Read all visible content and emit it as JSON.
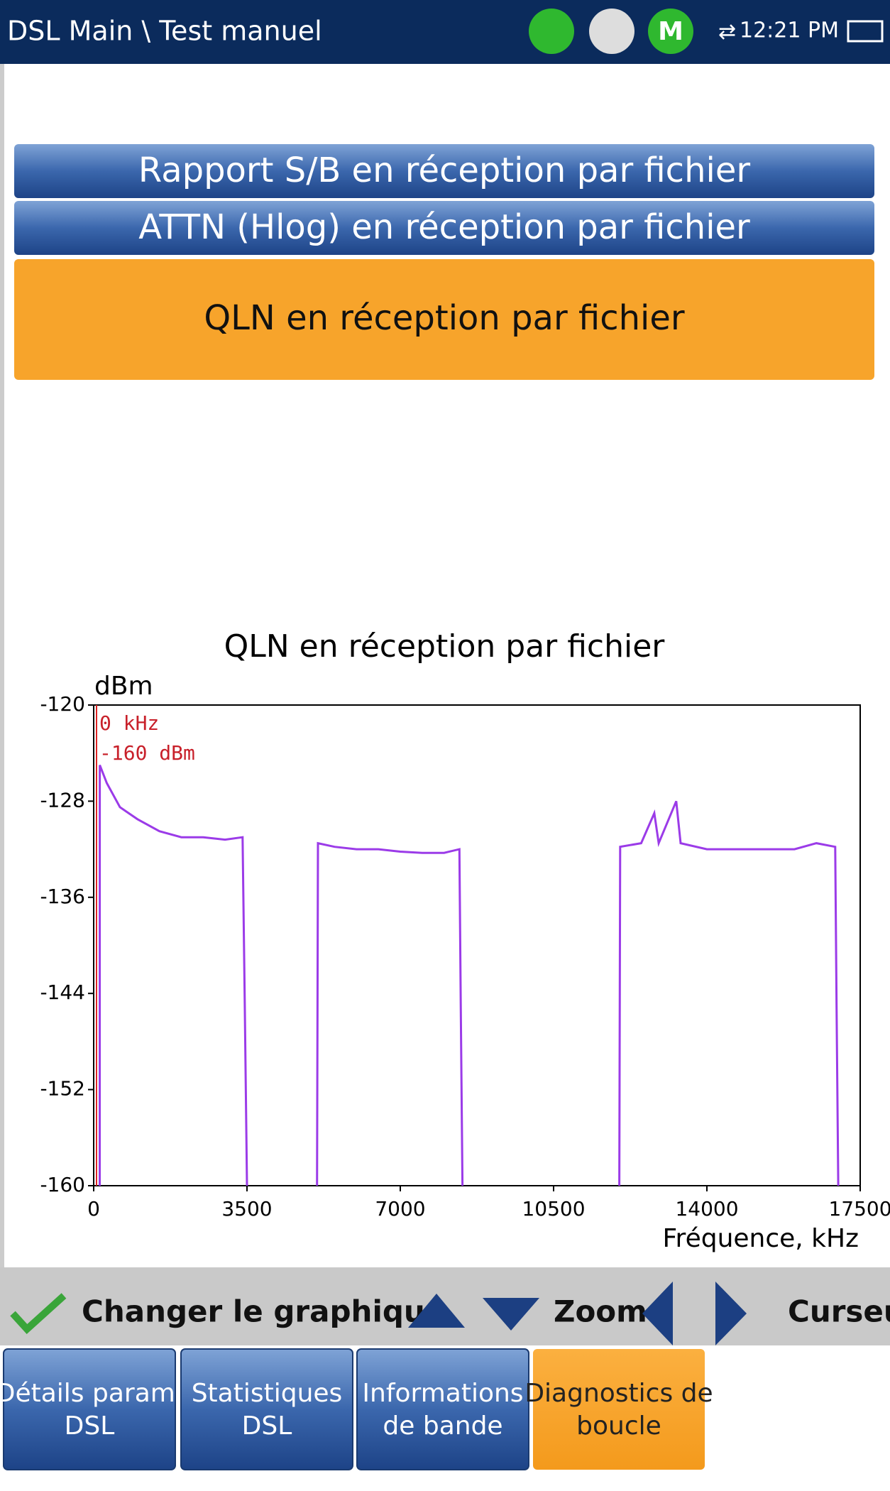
{
  "header": {
    "title": "DSL Main \\ Test manuel",
    "status_icon": "M",
    "time": "12:21 PM"
  },
  "buttons": [
    "Rapport S/B en réception par fichier",
    "ATTN (Hlog) en réception par fichier",
    "QLN en réception par fichier"
  ],
  "chart_data": {
    "type": "line",
    "title": "QLN en réception par fichier",
    "y_label": "dBm",
    "x_label": "Fréquence, kHz",
    "cursor_labels": [
      "0 kHz",
      "-160 dBm"
    ],
    "color": "#9b3be8",
    "x": [
      138,
      140,
      300,
      600,
      1000,
      1500,
      2000,
      2500,
      3000,
      3400,
      3450,
      3500,
      null,
      5100,
      5120,
      5500,
      6000,
      6500,
      7000,
      7500,
      8000,
      8350,
      8380,
      8420,
      null,
      12000,
      12020,
      12500,
      12800,
      12900,
      13300,
      13400,
      14000,
      15000,
      16000,
      16500,
      16930,
      16960,
      17000
    ],
    "values": [
      -160,
      -125,
      -126.5,
      -128.5,
      -129.5,
      -130.5,
      -131,
      -131,
      -131.2,
      -131,
      -145,
      -160,
      null,
      -160,
      -131.5,
      -131.8,
      -132,
      -132,
      -132.2,
      -132.3,
      -132.3,
      -132,
      -145,
      -160,
      null,
      -160,
      -131.8,
      -131.5,
      -129,
      -131.5,
      -128,
      -131.5,
      -132,
      -132,
      -132,
      -131.5,
      -131.8,
      -145,
      -160
    ],
    "xlim": [
      0,
      17500
    ],
    "xticks": [
      0,
      3500,
      7000,
      10500,
      14000,
      17500
    ],
    "ylim": [
      -160,
      -120
    ],
    "yticks": [
      -120,
      -128,
      -136,
      -144,
      -152,
      -160
    ]
  },
  "toolbar": {
    "change": "Changer le graphique",
    "zoom": "Zoom",
    "cursor": "Curseur"
  },
  "tabs": [
    [
      "Détails param.",
      "DSL"
    ],
    [
      "Statistiques",
      "DSL"
    ],
    [
      "Informations",
      "de bande"
    ],
    [
      "Diagnostics de",
      "boucle"
    ]
  ]
}
